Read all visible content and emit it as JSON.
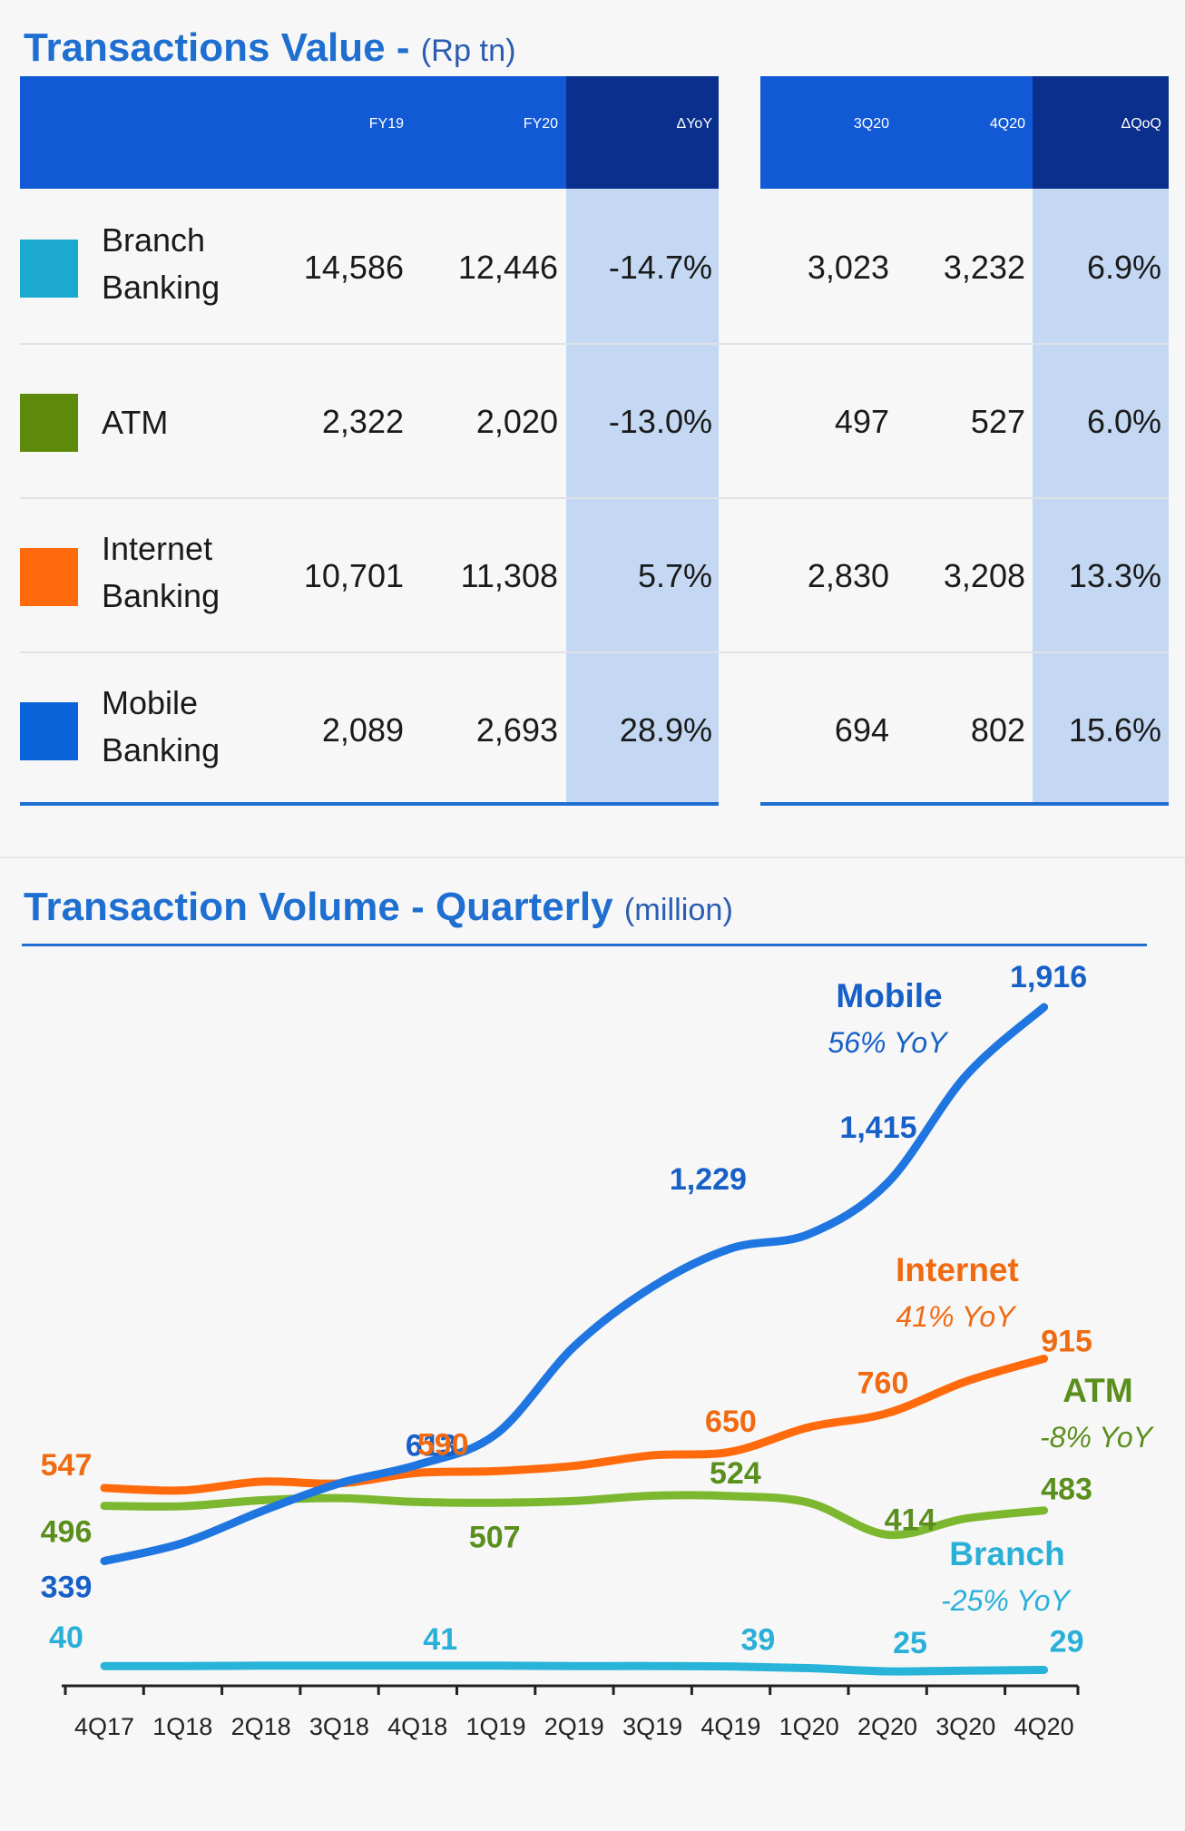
{
  "table": {
    "title": "Transactions Value -",
    "title_unit": "(Rp tn)",
    "columns": [
      "FY19",
      "FY20",
      "ΔYoY",
      "3Q20",
      "4Q20",
      "ΔQoQ"
    ],
    "rows": [
      {
        "name_line1": "Branch",
        "name_line2": "Banking",
        "color": "#1ba9cf",
        "values": [
          "14,586",
          "12,446",
          "-14.7%",
          "3,023",
          "3,232",
          "6.9%"
        ]
      },
      {
        "name_line1": "ATM",
        "name_line2": "",
        "color": "#5d8a0a",
        "values": [
          "2,322",
          "2,020",
          "-13.0%",
          "497",
          "527",
          "6.0%"
        ]
      },
      {
        "name_line1": "Internet",
        "name_line2": "Banking",
        "color": "#ff6a0d",
        "values": [
          "10,701",
          "11,308",
          "5.7%",
          "2,830",
          "3,208",
          "13.3%"
        ]
      },
      {
        "name_line1": "Mobile",
        "name_line2": "Banking",
        "color": "#0b63d9",
        "values": [
          "2,089",
          "2,693",
          "28.9%",
          "694",
          "802",
          "15.6%"
        ]
      }
    ]
  },
  "chart_title": "Transaction Volume - Quarterly",
  "chart_unit": "(million)",
  "chart_data": {
    "type": "line",
    "title": "Transaction Volume - Quarterly",
    "unit": "(million)",
    "categories": [
      "4Q17",
      "1Q18",
      "2Q18",
      "3Q18",
      "4Q18",
      "1Q19",
      "2Q19",
      "3Q19",
      "4Q19",
      "1Q20",
      "2Q20",
      "3Q20",
      "4Q20"
    ],
    "series": [
      {
        "name": "Mobile",
        "growth": "56% YoY",
        "color": "#1f76e0",
        "values": [
          339,
          390,
          480,
          560,
          613,
          700,
          950,
          1120,
          1229,
          1270,
          1415,
          1720,
          1916
        ],
        "labels": [
          {
            "index": 0,
            "text": "339"
          },
          {
            "index": 4,
            "text": "613"
          },
          {
            "index": 8,
            "text": "1,229"
          },
          {
            "index": 10,
            "text": "1,415"
          },
          {
            "index": 12,
            "text": "1,916"
          }
        ]
      },
      {
        "name": "Internet",
        "growth": "41% YoY",
        "color": "#ff6a0d",
        "values": [
          547,
          540,
          565,
          560,
          590,
          595,
          610,
          640,
          650,
          720,
          760,
          850,
          915
        ],
        "labels": [
          {
            "index": 0,
            "text": "547"
          },
          {
            "index": 4,
            "text": "590"
          },
          {
            "index": 8,
            "text": "650"
          },
          {
            "index": 10,
            "text": "760"
          },
          {
            "index": 12,
            "text": "915"
          }
        ]
      },
      {
        "name": "ATM",
        "growth": "-8% YoY",
        "color": "#7cb82f",
        "values": [
          496,
          495,
          512,
          518,
          507,
          505,
          510,
          525,
          524,
          505,
          414,
          460,
          483
        ],
        "labels": [
          {
            "index": 0,
            "text": "496"
          },
          {
            "index": 4,
            "text": "507"
          },
          {
            "index": 8,
            "text": "524"
          },
          {
            "index": 10,
            "text": "414"
          },
          {
            "index": 12,
            "text": "483"
          }
        ]
      },
      {
        "name": "Branch",
        "growth": "-25% YoY",
        "color": "#28b3d8",
        "values": [
          40,
          40,
          41,
          41,
          41,
          41,
          40,
          40,
          39,
          34,
          25,
          27,
          29
        ],
        "labels": [
          {
            "index": 0,
            "text": "40"
          },
          {
            "index": 4,
            "text": "41"
          },
          {
            "index": 8,
            "text": "39"
          },
          {
            "index": 10,
            "text": "25"
          },
          {
            "index": 12,
            "text": "29"
          }
        ]
      }
    ],
    "grid": false,
    "legend": "inline labels at right"
  }
}
